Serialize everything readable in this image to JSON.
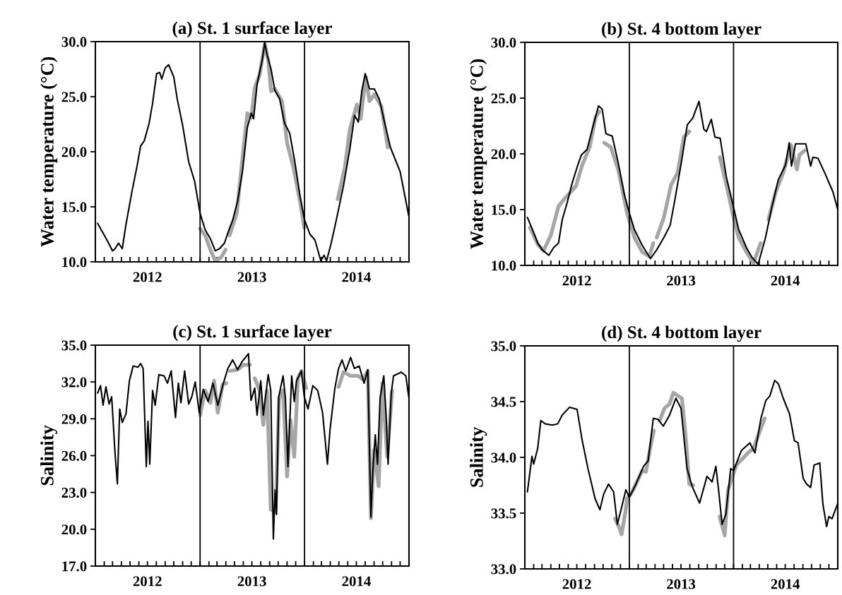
{
  "chart_data": [
    {
      "type": "line",
      "title": "(a) St. 1 surface layer",
      "ylabel": "Water temperature (°C)",
      "xlim": [
        "2012-01-01",
        "2015-01-01"
      ],
      "ylim": [
        10,
        30
      ],
      "yticks": [
        {
          "value": 10,
          "label": "10.0"
        },
        {
          "value": 15,
          "label": "15.0"
        },
        {
          "value": 20,
          "label": "20.0"
        },
        {
          "value": 25,
          "label": "25.0"
        },
        {
          "value": 30,
          "label": "30.0"
        }
      ],
      "xticks": [
        {
          "value": "2012-01-01",
          "label": null
        },
        {
          "value": "2012-02-01",
          "label": null
        },
        {
          "value": "2012-03-01",
          "label": null
        },
        {
          "value": "2012-04-01",
          "label": null
        },
        {
          "value": "2012-05-01",
          "label": null
        },
        {
          "value": "2012-06-01",
          "label": null
        },
        {
          "value": "2012-07-01",
          "label": "2012"
        },
        {
          "value": "2012-08-01",
          "label": null
        },
        {
          "value": "2012-09-01",
          "label": null
        },
        {
          "value": "2012-10-01",
          "label": null
        },
        {
          "value": "2012-11-01",
          "label": null
        },
        {
          "value": "2012-12-01",
          "label": null
        },
        {
          "value": "2013-01-01",
          "label": null
        },
        {
          "value": "2013-02-01",
          "label": null
        },
        {
          "value": "2013-03-01",
          "label": null
        },
        {
          "value": "2013-04-01",
          "label": null
        },
        {
          "value": "2013-05-01",
          "label": null
        },
        {
          "value": "2013-06-01",
          "label": null
        },
        {
          "value": "2013-07-01",
          "label": "2013"
        },
        {
          "value": "2013-08-01",
          "label": null
        },
        {
          "value": "2013-09-01",
          "label": null
        },
        {
          "value": "2013-10-01",
          "label": null
        },
        {
          "value": "2013-11-01",
          "label": null
        },
        {
          "value": "2013-12-01",
          "label": null
        },
        {
          "value": "2014-01-01",
          "label": null
        },
        {
          "value": "2014-02-01",
          "label": null
        },
        {
          "value": "2014-03-01",
          "label": null
        },
        {
          "value": "2014-04-01",
          "label": null
        },
        {
          "value": "2014-05-01",
          "label": null
        },
        {
          "value": "2014-06-01",
          "label": null
        },
        {
          "value": "2014-07-01",
          "label": "2014"
        },
        {
          "value": "2014-08-01",
          "label": null
        },
        {
          "value": "2014-09-01",
          "label": null
        },
        {
          "value": "2014-10-01",
          "label": null
        },
        {
          "value": "2014-11-01",
          "label": null
        },
        {
          "value": "2014-12-01",
          "label": null
        },
        {
          "value": "2015-01-01",
          "label": null
        }
      ],
      "ref_lines": [
        {
          "axis": "x",
          "value": "2013-01-01",
          "color": "#000000"
        },
        {
          "axis": "x",
          "value": "2014-01-01",
          "color": "#000000"
        }
      ],
      "grid": false,
      "legend": false,
      "marker": "none",
      "line_style": "solid",
      "series": [
        {
          "color": "#a6a6a6",
          "x": [
            "2013-01-01",
            "2013-01-19",
            "2013-02-06",
            "2013-02-23",
            "2013-03-15",
            "2013-03-31",
            "2013-04-07",
            "2013-04-14",
            "2013-05-09",
            "2013-05-25",
            "2013-06-15",
            "2013-06-29",
            "2013-07-11",
            "2013-07-28",
            "2013-08-15",
            "2013-08-27",
            "2013-09-06",
            "2013-09-19",
            "2013-10-14",
            "2013-11-01",
            "2013-11-23",
            "2013-12-16",
            "2013-12-31",
            "2014-03-01",
            "2014-04-27",
            "2014-05-22",
            "2014-06-08",
            "2014-07-03",
            "2014-07-16",
            "2014-08-03",
            "2014-08-16",
            "2014-09-02",
            "2014-09-27",
            "2014-10-19"
          ],
          "values": [
            13.0,
            12.4,
            11.1,
            10.1,
            10.4,
            11.1,
            null,
            12.4,
            14.4,
            18.4,
            23.5,
            23.1,
            25.8,
            27.0,
            29.8,
            28.3,
            25.5,
            25.7,
            24.6,
            20.8,
            18.6,
            15.5,
            13.1,
            null,
            15.7,
            18.6,
            22.0,
            24.3,
            23.0,
            26.8,
            24.6,
            25.2,
            24.1,
            20.4
          ]
        },
        {
          "color": "#000000",
          "x": [
            "2012-01-09",
            "2012-02-10",
            "2012-03-01",
            "2012-03-10",
            "2012-03-22",
            "2012-04-04",
            "2012-04-17",
            "2012-05-08",
            "2012-05-25",
            "2012-06-07",
            "2012-06-20",
            "2012-07-07",
            "2012-07-19",
            "2012-08-02",
            "2012-08-13",
            "2012-08-20",
            "2012-09-01",
            "2012-09-13",
            "2012-10-01",
            "2012-10-13",
            "2012-11-01",
            "2012-11-22",
            "2012-12-13",
            "2013-01-01",
            "2013-01-19",
            "2013-02-06",
            "2013-02-23",
            "2013-03-10",
            "2013-03-27",
            "2013-04-09",
            "2013-04-25",
            "2013-05-12",
            "2013-05-29",
            "2013-06-15",
            "2013-06-29",
            "2013-07-07",
            "2013-07-19",
            "2013-08-06",
            "2013-08-15",
            "2013-08-23",
            "2013-09-06",
            "2013-09-19",
            "2013-10-06",
            "2013-10-23",
            "2013-11-10",
            "2013-11-28",
            "2013-12-16",
            "2014-01-01",
            "2014-01-20",
            "2014-02-06",
            "2014-02-27",
            "2014-03-10",
            "2014-03-19",
            "2014-04-05",
            "2014-04-22",
            "2014-05-17",
            "2014-06-08",
            "2014-06-25",
            "2014-07-08",
            "2014-07-20",
            "2014-08-01",
            "2014-08-16",
            "2014-09-02",
            "2014-09-19",
            "2014-10-10",
            "2014-10-28",
            "2014-12-01",
            "2014-12-31"
          ],
          "values": [
            13.5,
            12.0,
            11.0,
            11.2,
            11.7,
            11.2,
            13.4,
            16.4,
            18.6,
            20.5,
            21.0,
            22.6,
            24.4,
            27.1,
            27.2,
            26.6,
            27.6,
            27.9,
            26.8,
            24.8,
            22.4,
            19.1,
            17.3,
            14.4,
            12.9,
            12.1,
            11.0,
            11.2,
            11.7,
            12.7,
            13.8,
            15.5,
            18.2,
            22.2,
            23.5,
            23.0,
            26.1,
            28.3,
            29.9,
            28.8,
            27.5,
            25.6,
            24.8,
            22.6,
            21.7,
            19.1,
            16.0,
            13.8,
            12.5,
            12.0,
            10.1,
            10.6,
            10.1,
            11.8,
            13.8,
            16.9,
            20.2,
            23.3,
            22.7,
            25.5,
            27.1,
            25.7,
            25.7,
            24.8,
            22.4,
            20.4,
            18.2,
            14.2
          ]
        }
      ]
    },
    {
      "type": "line",
      "title": "(b) St. 4 bottom layer",
      "ylabel": "Water temperature (°C)",
      "xlim": [
        "2012-01-01",
        "2015-01-01"
      ],
      "ylim": [
        10,
        30
      ],
      "yticks": [
        {
          "value": 10,
          "label": "10.0"
        },
        {
          "value": 15,
          "label": "15.0"
        },
        {
          "value": 20,
          "label": "20.0"
        },
        {
          "value": 25,
          "label": "25.0"
        },
        {
          "value": 30,
          "label": "30.0"
        }
      ],
      "xticks": [
        {
          "value": "2012-01-01",
          "label": null
        },
        {
          "value": "2012-02-01",
          "label": null
        },
        {
          "value": "2012-03-01",
          "label": null
        },
        {
          "value": "2012-04-01",
          "label": null
        },
        {
          "value": "2012-05-01",
          "label": null
        },
        {
          "value": "2012-06-01",
          "label": null
        },
        {
          "value": "2012-07-01",
          "label": "2012"
        },
        {
          "value": "2012-08-01",
          "label": null
        },
        {
          "value": "2012-09-01",
          "label": null
        },
        {
          "value": "2012-10-01",
          "label": null
        },
        {
          "value": "2012-11-01",
          "label": null
        },
        {
          "value": "2012-12-01",
          "label": null
        },
        {
          "value": "2013-01-01",
          "label": null
        },
        {
          "value": "2013-02-01",
          "label": null
        },
        {
          "value": "2013-03-01",
          "label": null
        },
        {
          "value": "2013-04-01",
          "label": null
        },
        {
          "value": "2013-05-01",
          "label": null
        },
        {
          "value": "2013-06-01",
          "label": null
        },
        {
          "value": "2013-07-01",
          "label": "2013"
        },
        {
          "value": "2013-08-01",
          "label": null
        },
        {
          "value": "2013-09-01",
          "label": null
        },
        {
          "value": "2013-10-01",
          "label": null
        },
        {
          "value": "2013-11-01",
          "label": null
        },
        {
          "value": "2013-12-01",
          "label": null
        },
        {
          "value": "2014-01-01",
          "label": null
        },
        {
          "value": "2014-02-01",
          "label": null
        },
        {
          "value": "2014-03-01",
          "label": null
        },
        {
          "value": "2014-04-01",
          "label": null
        },
        {
          "value": "2014-05-01",
          "label": null
        },
        {
          "value": "2014-06-01",
          "label": null
        },
        {
          "value": "2014-07-01",
          "label": "2014"
        },
        {
          "value": "2014-08-01",
          "label": null
        },
        {
          "value": "2014-09-01",
          "label": null
        },
        {
          "value": "2014-10-01",
          "label": null
        },
        {
          "value": "2014-11-01",
          "label": null
        },
        {
          "value": "2014-12-01",
          "label": null
        },
        {
          "value": "2015-01-01",
          "label": null
        }
      ],
      "ref_lines": [
        {
          "axis": "x",
          "value": "2013-01-01",
          "color": "#000000"
        },
        {
          "axis": "x",
          "value": "2014-01-01",
          "color": "#000000"
        }
      ],
      "grid": false,
      "legend": false,
      "marker": "none",
      "line_style": "solid",
      "series": [
        {
          "color": "#a6a6a6",
          "x": [
            "2012-01-19",
            "2012-02-15",
            "2012-03-06",
            "2012-04-01",
            "2012-04-28",
            "2012-05-20",
            "2012-06-28",
            "2012-07-20",
            "2012-08-15",
            "2012-09-05",
            "2012-09-18",
            "2012-09-25",
            "2012-10-05",
            "2012-10-28",
            "2012-11-23",
            "2012-12-24",
            "2013-01-19",
            "2013-02-15",
            "2013-03-12",
            "2013-03-26",
            "2013-04-01",
            "2013-04-07",
            "2013-05-02",
            "2013-05-27",
            "2013-06-19",
            "2013-07-11",
            "2013-07-30",
            "2013-09-01",
            "2013-11-14",
            "2013-12-07",
            "2014-01-01",
            "2014-01-19",
            "2014-02-15",
            "2014-03-12",
            "2014-04-06",
            "2014-04-20",
            "2014-05-03",
            "2014-05-29",
            "2014-06-24",
            "2014-07-21",
            "2014-08-11",
            "2014-08-20",
            "2014-09-07"
          ],
          "values": [
            13.4,
            11.9,
            11.3,
            12.7,
            15.3,
            16.0,
            17.1,
            19.0,
            20.6,
            23.3,
            23.8,
            null,
            21.0,
            20.6,
            18.6,
            14.7,
            12.5,
            11.2,
            10.8,
            12.0,
            null,
            12.5,
            14.3,
            17.2,
            18.3,
            21.5,
            22.0,
            null,
            19.7,
            17.2,
            14.3,
            12.5,
            11.2,
            10.2,
            12.0,
            null,
            14.1,
            16.6,
            18.3,
            20.8,
            18.6,
            19.9,
            20.3
          ]
        },
        {
          "color": "#000000",
          "x": [
            "2012-01-10",
            "2012-01-28",
            "2012-02-15",
            "2012-03-02",
            "2012-03-25",
            "2012-04-11",
            "2012-04-28",
            "2012-05-11",
            "2012-05-28",
            "2012-06-15",
            "2012-07-02",
            "2012-07-17",
            "2012-08-06",
            "2012-08-24",
            "2012-09-15",
            "2012-09-28",
            "2012-10-11",
            "2012-11-02",
            "2012-11-23",
            "2012-12-15",
            "2013-01-01",
            "2013-01-19",
            "2013-02-15",
            "2013-03-16",
            "2013-04-07",
            "2013-05-02",
            "2013-05-24",
            "2013-06-11",
            "2013-07-02",
            "2013-07-23",
            "2013-08-11",
            "2013-09-02",
            "2013-09-19",
            "2013-09-28",
            "2013-10-15",
            "2013-10-28",
            "2013-11-15",
            "2013-12-07",
            "2014-01-01",
            "2014-01-19",
            "2014-02-15",
            "2014-03-07",
            "2014-03-28",
            "2014-04-23",
            "2014-05-15",
            "2014-06-07",
            "2014-07-02",
            "2014-07-15",
            "2014-07-23",
            "2014-08-06",
            "2014-09-11",
            "2014-09-28",
            "2014-10-06",
            "2014-10-24",
            "2014-11-18",
            "2014-12-15",
            "2014-12-31"
          ],
          "values": [
            14.3,
            13.2,
            12.0,
            11.4,
            10.9,
            11.6,
            12.0,
            14.1,
            15.6,
            17.4,
            18.8,
            19.9,
            20.4,
            22.2,
            24.3,
            24.0,
            21.8,
            21.6,
            19.2,
            16.3,
            14.7,
            13.2,
            11.8,
            10.6,
            11.4,
            12.5,
            13.6,
            16.1,
            19.2,
            22.6,
            23.2,
            24.7,
            22.2,
            22.0,
            23.1,
            21.5,
            21.4,
            17.9,
            15.2,
            13.2,
            11.6,
            10.7,
            10.1,
            12.5,
            15.2,
            17.7,
            19.0,
            21.0,
            18.9,
            20.9,
            20.9,
            18.9,
            19.7,
            19.6,
            18.2,
            16.6,
            15.1
          ]
        }
      ]
    },
    {
      "type": "line",
      "title": "(c) St. 1 surface layer",
      "ylabel": "Salinity",
      "xlim": [
        "2012-01-01",
        "2015-01-01"
      ],
      "ylim": [
        17,
        35
      ],
      "yticks": [
        {
          "value": 17,
          "label": "17.0"
        },
        {
          "value": 20,
          "label": "20.0"
        },
        {
          "value": 23,
          "label": "23.0"
        },
        {
          "value": 26,
          "label": "26.0"
        },
        {
          "value": 29,
          "label": "29.0"
        },
        {
          "value": 32,
          "label": "32.0"
        },
        {
          "value": 35,
          "label": "35.0"
        }
      ],
      "xticks": [
        {
          "value": "2012-01-01",
          "label": null
        },
        {
          "value": "2012-02-01",
          "label": null
        },
        {
          "value": "2012-03-01",
          "label": null
        },
        {
          "value": "2012-04-01",
          "label": null
        },
        {
          "value": "2012-05-01",
          "label": null
        },
        {
          "value": "2012-06-01",
          "label": null
        },
        {
          "value": "2012-07-01",
          "label": "2012"
        },
        {
          "value": "2012-08-01",
          "label": null
        },
        {
          "value": "2012-09-01",
          "label": null
        },
        {
          "value": "2012-10-01",
          "label": null
        },
        {
          "value": "2012-11-01",
          "label": null
        },
        {
          "value": "2012-12-01",
          "label": null
        },
        {
          "value": "2013-01-01",
          "label": null
        },
        {
          "value": "2013-02-01",
          "label": null
        },
        {
          "value": "2013-03-01",
          "label": null
        },
        {
          "value": "2013-04-01",
          "label": null
        },
        {
          "value": "2013-05-01",
          "label": null
        },
        {
          "value": "2013-06-01",
          "label": null
        },
        {
          "value": "2013-07-01",
          "label": "2013"
        },
        {
          "value": "2013-08-01",
          "label": null
        },
        {
          "value": "2013-09-01",
          "label": null
        },
        {
          "value": "2013-10-01",
          "label": null
        },
        {
          "value": "2013-11-01",
          "label": null
        },
        {
          "value": "2013-12-01",
          "label": null
        },
        {
          "value": "2014-01-01",
          "label": null
        },
        {
          "value": "2014-02-01",
          "label": null
        },
        {
          "value": "2014-03-01",
          "label": null
        },
        {
          "value": "2014-04-01",
          "label": null
        },
        {
          "value": "2014-05-01",
          "label": null
        },
        {
          "value": "2014-06-01",
          "label": null
        },
        {
          "value": "2014-07-01",
          "label": "2014"
        },
        {
          "value": "2014-08-01",
          "label": null
        },
        {
          "value": "2014-09-01",
          "label": null
        },
        {
          "value": "2014-10-01",
          "label": null
        },
        {
          "value": "2014-11-01",
          "label": null
        },
        {
          "value": "2014-12-01",
          "label": null
        },
        {
          "value": "2015-01-01",
          "label": null
        }
      ],
      "ref_lines": [
        {
          "axis": "x",
          "value": "2013-01-01",
          "color": "#000000"
        },
        {
          "axis": "x",
          "value": "2014-01-01",
          "color": "#000000"
        }
      ],
      "grid": false,
      "legend": false,
      "marker": "none",
      "line_style": "solid",
      "series": [
        {
          "color": "#a6a6a6",
          "x": [
            "2013-01-01",
            "2013-01-19",
            "2013-02-06",
            "2013-02-19",
            "2013-03-04",
            "2013-03-21",
            "2013-04-03",
            "2013-04-10",
            "2013-04-16",
            "2013-05-12",
            "2013-06-02",
            "2013-06-24",
            "2013-07-01",
            "2013-07-11",
            "2013-07-28",
            "2013-08-10",
            "2013-08-23",
            "2013-09-05",
            "2013-09-22",
            "2013-10-04",
            "2013-10-18",
            "2013-11-01",
            "2013-11-13",
            "2013-11-26",
            "2013-12-09",
            "2013-12-21",
            "2014-01-07",
            "2014-03-01",
            "2014-04-30",
            "2014-05-17",
            "2014-06-11",
            "2014-07-07",
            "2014-07-24",
            "2014-08-10",
            "2014-08-21",
            "2014-09-01",
            "2014-09-17",
            "2014-09-30",
            "2014-10-17",
            "2014-11-03"
          ],
          "values": [
            29.3,
            31.3,
            30.3,
            32.1,
            29.5,
            31.8,
            31.9,
            null,
            32.9,
            33.0,
            33.4,
            33.4,
            null,
            32.3,
            31.3,
            28.5,
            31.3,
            21.6,
            21.4,
            30.7,
            31.3,
            24.3,
            28.9,
            25.9,
            32.3,
            32.9,
            31.5,
            null,
            31.6,
            32.8,
            32.5,
            32.5,
            32.2,
            32.9,
            20.9,
            26.5,
            23.5,
            31.9,
            25.9,
            31.3
          ]
        },
        {
          "color": "#000000",
          "x": [
            "2012-01-09",
            "2012-01-19",
            "2012-01-28",
            "2012-02-07",
            "2012-02-18",
            "2012-02-27",
            "2012-03-10",
            "2012-03-18",
            "2012-03-26",
            "2012-04-04",
            "2012-04-17",
            "2012-04-29",
            "2012-05-12",
            "2012-05-29",
            "2012-06-07",
            "2012-06-16",
            "2012-06-27",
            "2012-07-03",
            "2012-07-09",
            "2012-07-19",
            "2012-07-28",
            "2012-08-10",
            "2012-08-28",
            "2012-09-09",
            "2012-09-22",
            "2012-10-07",
            "2012-10-17",
            "2012-10-26",
            "2012-11-08",
            "2012-11-22",
            "2012-12-03",
            "2012-12-15",
            "2012-12-29",
            "2013-01-12",
            "2013-01-29",
            "2013-02-15",
            "2013-03-04",
            "2013-03-21",
            "2013-04-08",
            "2013-04-25",
            "2013-05-12",
            "2013-05-29",
            "2013-06-19",
            "2013-06-28",
            "2013-07-11",
            "2013-07-19",
            "2013-08-01",
            "2013-08-10",
            "2013-08-27",
            "2013-09-05",
            "2013-09-14",
            "2013-09-20",
            "2013-09-25",
            "2013-10-03",
            "2013-10-18",
            "2013-10-26",
            "2013-11-04",
            "2013-11-17",
            "2013-11-26",
            "2013-12-04",
            "2013-12-21",
            "2013-12-31",
            "2014-01-13",
            "2014-01-30",
            "2014-02-16",
            "2014-03-05",
            "2014-03-22",
            "2014-03-31",
            "2014-04-17",
            "2014-04-30",
            "2014-05-12",
            "2014-05-25",
            "2014-06-11",
            "2014-06-24",
            "2014-07-11",
            "2014-07-28",
            "2014-08-10",
            "2014-08-21",
            "2014-08-27",
            "2014-09-05",
            "2014-09-13",
            "2014-09-22",
            "2014-10-05",
            "2014-10-13",
            "2014-10-20",
            "2014-10-31",
            "2014-11-08",
            "2014-12-05",
            "2014-12-21",
            "2014-12-31"
          ],
          "values": [
            31.1,
            31.7,
            30.1,
            31.6,
            30.2,
            30.8,
            26.1,
            23.7,
            29.8,
            28.7,
            29.4,
            32.1,
            33.3,
            33.2,
            33.5,
            33.1,
            25.1,
            28.8,
            25.3,
            31.3,
            30.1,
            32.6,
            32.5,
            31.9,
            32.9,
            29.1,
            31.9,
            30.3,
            32.9,
            30.2,
            30.8,
            32.0,
            29.5,
            31.4,
            30.4,
            31.9,
            30.1,
            31.7,
            33.1,
            33.8,
            33.0,
            33.7,
            34.3,
            30.5,
            31.5,
            29.3,
            32.1,
            29.3,
            32.6,
            31.3,
            19.2,
            23.2,
            21.2,
            30.8,
            32.5,
            30.7,
            25.1,
            32.5,
            30.4,
            32.1,
            32.9,
            30.8,
            29.8,
            31.7,
            31.3,
            29.5,
            25.3,
            28.1,
            31.5,
            33.1,
            33.8,
            32.9,
            34.0,
            33.1,
            33.3,
            31.9,
            33.0,
            21.0,
            24.5,
            27.7,
            25.3,
            30.7,
            32.5,
            29.3,
            25.3,
            31.1,
            32.5,
            32.8,
            32.5,
            30.8
          ]
        }
      ]
    },
    {
      "type": "line",
      "title": "(d) St. 4 bottom layer",
      "ylabel": "Salinity",
      "xlim": [
        "2012-01-01",
        "2015-01-01"
      ],
      "ylim": [
        33,
        35
      ],
      "yticks": [
        {
          "value": 33,
          "label": "33.0"
        },
        33.5,
        {
          "value": 34,
          "label": "34.0"
        },
        34.5,
        {
          "value": 35,
          "label": "35.0"
        }
      ],
      "xticks": [
        {
          "value": "2012-01-01",
          "label": null
        },
        {
          "value": "2012-02-01",
          "label": null
        },
        {
          "value": "2012-03-01",
          "label": null
        },
        {
          "value": "2012-04-01",
          "label": null
        },
        {
          "value": "2012-05-01",
          "label": null
        },
        {
          "value": "2012-06-01",
          "label": null
        },
        {
          "value": "2012-07-01",
          "label": "2012"
        },
        {
          "value": "2012-08-01",
          "label": null
        },
        {
          "value": "2012-09-01",
          "label": null
        },
        {
          "value": "2012-10-01",
          "label": null
        },
        {
          "value": "2012-11-01",
          "label": null
        },
        {
          "value": "2012-12-01",
          "label": null
        },
        {
          "value": "2013-01-01",
          "label": null
        },
        {
          "value": "2013-02-01",
          "label": null
        },
        {
          "value": "2013-03-01",
          "label": null
        },
        {
          "value": "2013-04-01",
          "label": null
        },
        {
          "value": "2013-05-01",
          "label": null
        },
        {
          "value": "2013-06-01",
          "label": null
        },
        {
          "value": "2013-07-01",
          "label": "2013"
        },
        {
          "value": "2013-08-01",
          "label": null
        },
        {
          "value": "2013-09-01",
          "label": null
        },
        {
          "value": "2013-10-01",
          "label": null
        },
        {
          "value": "2013-11-01",
          "label": null
        },
        {
          "value": "2013-12-01",
          "label": null
        },
        {
          "value": "2014-01-01",
          "label": null
        },
        {
          "value": "2014-02-01",
          "label": null
        },
        {
          "value": "2014-03-01",
          "label": null
        },
        {
          "value": "2014-04-01",
          "label": null
        },
        {
          "value": "2014-05-01",
          "label": null
        },
        {
          "value": "2014-06-01",
          "label": null
        },
        {
          "value": "2014-07-01",
          "label": "2014"
        },
        {
          "value": "2014-08-01",
          "label": null
        },
        {
          "value": "2014-09-01",
          "label": null
        },
        {
          "value": "2014-10-01",
          "label": null
        },
        {
          "value": "2014-11-01",
          "label": null
        },
        {
          "value": "2014-12-01",
          "label": null
        },
        {
          "value": "2015-01-01",
          "label": null
        }
      ],
      "ref_lines": [
        {
          "axis": "x",
          "value": "2013-01-01",
          "color": "#000000"
        },
        {
          "axis": "x",
          "value": "2014-01-01",
          "color": "#000000"
        }
      ],
      "grid": false,
      "legend": false,
      "marker": "none",
      "line_style": "solid",
      "series": [
        {
          "color": "#a6a6a6",
          "x": [
            "2012-11-12",
            "2012-11-25",
            "2012-12-05",
            "2012-12-20",
            "2012-12-24",
            "2013-01-11",
            "2013-02-02",
            "2013-02-15",
            "2013-02-28",
            "2013-03-17",
            "2013-03-28",
            "2013-04-05",
            "2013-04-17",
            "2013-05-04",
            "2013-05-22",
            "2013-06-04",
            "2013-06-21",
            "2013-07-04",
            "2013-07-17",
            "2013-07-30",
            "2013-08-13",
            "2013-10-01",
            "2013-11-13",
            "2013-12-01",
            "2013-12-13",
            "2013-12-26",
            "2014-01-11",
            "2014-02-02",
            "2014-02-20",
            "2014-03-12",
            "2014-03-29",
            "2014-04-20"
          ],
          "values": [
            33.45,
            33.38,
            33.31,
            33.54,
            33.63,
            33.69,
            33.81,
            33.88,
            33.87,
            34.11,
            34.24,
            null,
            34.33,
            34.44,
            34.48,
            34.58,
            34.55,
            34.53,
            34.2,
            33.76,
            33.75,
            null,
            33.47,
            33.3,
            33.71,
            33.81,
            33.93,
            33.99,
            34.04,
            34.08,
            34.2,
            34.35
          ]
        },
        {
          "color": "#000000",
          "x": [
            "2012-01-10",
            "2012-01-26",
            "2012-02-01",
            "2012-02-15",
            "2012-02-26",
            "2012-03-13",
            "2012-04-07",
            "2012-04-25",
            "2012-05-11",
            "2012-06-06",
            "2012-07-02",
            "2012-07-20",
            "2012-08-10",
            "2012-09-03",
            "2012-09-20",
            "2012-10-03",
            "2012-10-20",
            "2012-11-07",
            "2012-11-20",
            "2012-12-03",
            "2012-12-20",
            "2013-01-01",
            "2013-01-24",
            "2013-02-20",
            "2013-03-08",
            "2013-03-26",
            "2013-04-12",
            "2013-04-30",
            "2013-05-22",
            "2013-06-13",
            "2013-07-01",
            "2013-07-22",
            "2013-08-09",
            "2013-09-04",
            "2013-09-30",
            "2013-10-18",
            "2013-10-31",
            "2013-11-09",
            "2013-11-22",
            "2013-12-05",
            "2013-12-22",
            "2014-01-01",
            "2014-01-28",
            "2014-02-27",
            "2014-03-17",
            "2014-04-07",
            "2014-04-24",
            "2014-05-08",
            "2014-05-25",
            "2014-06-07",
            "2014-06-24",
            "2014-07-16",
            "2014-08-02",
            "2014-08-15",
            "2014-09-02",
            "2014-09-14",
            "2014-09-28",
            "2014-10-10",
            "2014-10-30",
            "2014-11-10",
            "2014-11-23",
            "2014-12-01",
            "2014-12-12",
            "2014-12-31"
          ],
          "values": [
            33.69,
            34.01,
            33.94,
            34.08,
            34.33,
            34.3,
            34.29,
            34.3,
            34.38,
            34.45,
            34.43,
            34.15,
            33.89,
            33.63,
            33.53,
            33.67,
            33.76,
            33.69,
            33.4,
            33.53,
            33.71,
            33.64,
            33.76,
            33.92,
            33.97,
            34.35,
            34.34,
            34.28,
            34.38,
            34.53,
            34.44,
            33.9,
            33.74,
            33.59,
            33.83,
            33.78,
            33.92,
            33.72,
            33.4,
            33.49,
            33.9,
            33.88,
            34.06,
            34.13,
            34.04,
            34.35,
            34.51,
            34.55,
            34.69,
            34.66,
            34.53,
            34.39,
            34.15,
            34.13,
            33.81,
            33.76,
            33.73,
            33.93,
            33.95,
            33.58,
            33.38,
            33.47,
            33.45,
            33.58
          ]
        }
      ]
    }
  ]
}
